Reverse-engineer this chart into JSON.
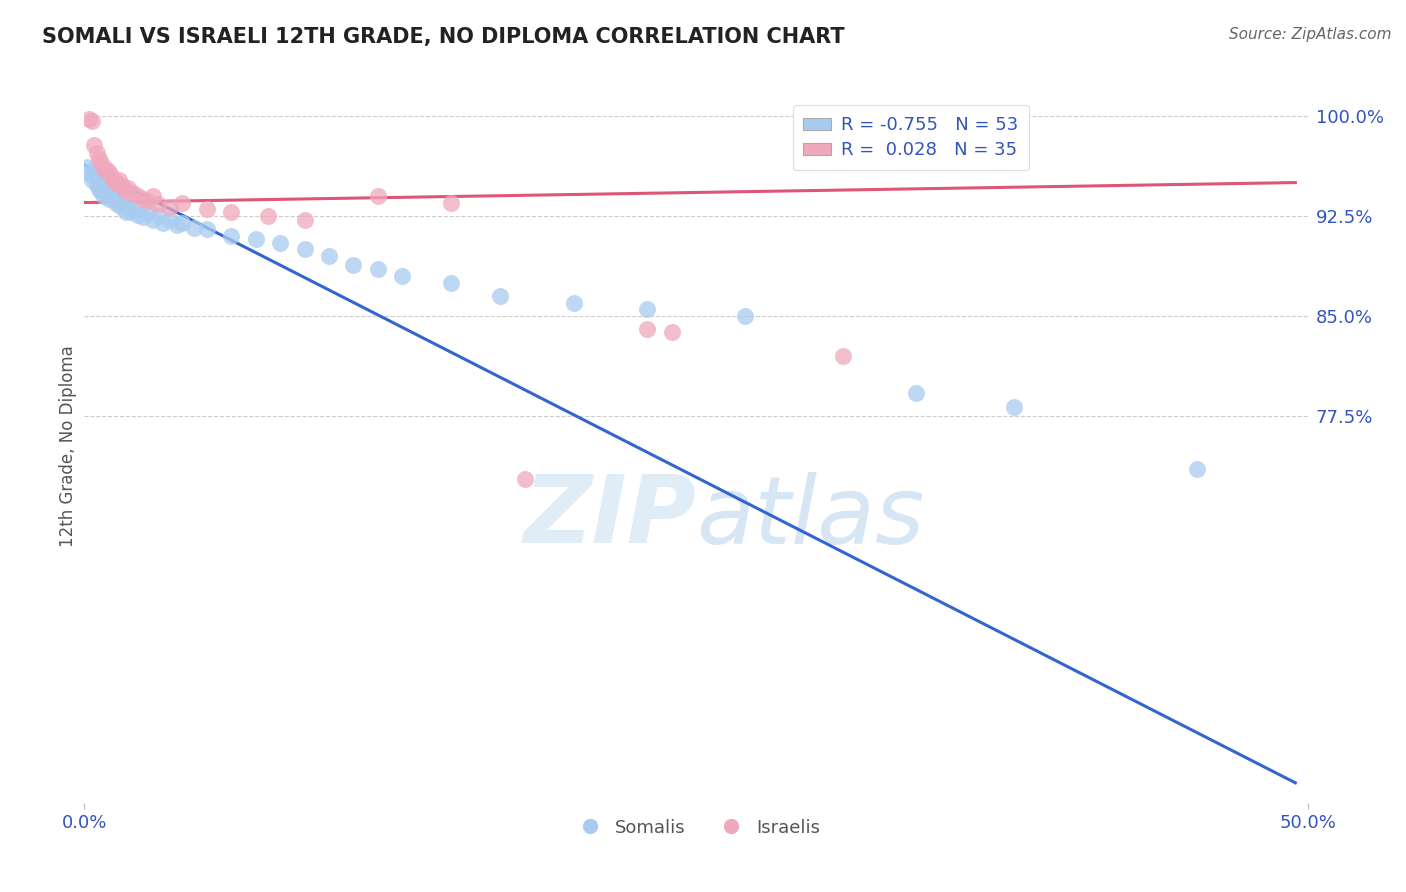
{
  "title": "SOMALI VS ISRAELI 12TH GRADE, NO DIPLOMA CORRELATION CHART",
  "source": "Source: ZipAtlas.com",
  "ylabel": "12th Grade, No Diploma",
  "xmin": 0.0,
  "xmax": 0.5,
  "ymin": 0.485,
  "ymax": 1.02,
  "background_color": "#ffffff",
  "grid_color": "#cccccc",
  "legend_r_somali": "-0.755",
  "legend_n_somali": "53",
  "legend_r_israeli": "0.028",
  "legend_n_israeli": "35",
  "somali_color": "#a8ccf0",
  "israeli_color": "#f0a8bc",
  "trendline_somali_color": "#3366cc",
  "trendline_israeli_color": "#dd5577",
  "somali_scatter": [
    [
      0.001,
      0.962
    ],
    [
      0.002,
      0.958
    ],
    [
      0.003,
      0.956
    ],
    [
      0.003,
      0.952
    ],
    [
      0.004,
      0.96
    ],
    [
      0.005,
      0.955
    ],
    [
      0.005,
      0.948
    ],
    [
      0.006,
      0.953
    ],
    [
      0.006,
      0.945
    ],
    [
      0.007,
      0.95
    ],
    [
      0.007,
      0.943
    ],
    [
      0.008,
      0.948
    ],
    [
      0.008,
      0.94
    ],
    [
      0.009,
      0.945
    ],
    [
      0.01,
      0.942
    ],
    [
      0.01,
      0.938
    ],
    [
      0.011,
      0.94
    ],
    [
      0.012,
      0.937
    ],
    [
      0.013,
      0.935
    ],
    [
      0.014,
      0.933
    ],
    [
      0.015,
      0.936
    ],
    [
      0.016,
      0.93
    ],
    [
      0.017,
      0.928
    ],
    [
      0.018,
      0.932
    ],
    [
      0.019,
      0.928
    ],
    [
      0.02,
      0.93
    ],
    [
      0.022,
      0.926
    ],
    [
      0.024,
      0.924
    ],
    [
      0.026,
      0.928
    ],
    [
      0.028,
      0.922
    ],
    [
      0.03,
      0.925
    ],
    [
      0.032,
      0.92
    ],
    [
      0.035,
      0.922
    ],
    [
      0.038,
      0.918
    ],
    [
      0.04,
      0.92
    ],
    [
      0.045,
      0.916
    ],
    [
      0.05,
      0.915
    ],
    [
      0.06,
      0.91
    ],
    [
      0.07,
      0.908
    ],
    [
      0.08,
      0.905
    ],
    [
      0.09,
      0.9
    ],
    [
      0.1,
      0.895
    ],
    [
      0.11,
      0.888
    ],
    [
      0.12,
      0.885
    ],
    [
      0.13,
      0.88
    ],
    [
      0.15,
      0.875
    ],
    [
      0.17,
      0.865
    ],
    [
      0.2,
      0.86
    ],
    [
      0.23,
      0.855
    ],
    [
      0.27,
      0.85
    ],
    [
      0.34,
      0.792
    ],
    [
      0.38,
      0.782
    ],
    [
      0.455,
      0.735
    ]
  ],
  "israeli_scatter": [
    [
      0.002,
      0.998
    ],
    [
      0.003,
      0.996
    ],
    [
      0.004,
      0.978
    ],
    [
      0.005,
      0.972
    ],
    [
      0.006,
      0.968
    ],
    [
      0.007,
      0.965
    ],
    [
      0.008,
      0.96
    ],
    [
      0.009,
      0.96
    ],
    [
      0.01,
      0.958
    ],
    [
      0.011,
      0.955
    ],
    [
      0.012,
      0.952
    ],
    [
      0.013,
      0.95
    ],
    [
      0.014,
      0.952
    ],
    [
      0.015,
      0.948
    ],
    [
      0.016,
      0.946
    ],
    [
      0.017,
      0.944
    ],
    [
      0.018,
      0.946
    ],
    [
      0.02,
      0.942
    ],
    [
      0.022,
      0.94
    ],
    [
      0.024,
      0.938
    ],
    [
      0.026,
      0.936
    ],
    [
      0.028,
      0.94
    ],
    [
      0.03,
      0.934
    ],
    [
      0.035,
      0.932
    ],
    [
      0.04,
      0.935
    ],
    [
      0.05,
      0.93
    ],
    [
      0.06,
      0.928
    ],
    [
      0.075,
      0.925
    ],
    [
      0.09,
      0.922
    ],
    [
      0.12,
      0.94
    ],
    [
      0.15,
      0.935
    ],
    [
      0.23,
      0.84
    ],
    [
      0.24,
      0.838
    ],
    [
      0.31,
      0.82
    ],
    [
      0.18,
      0.728
    ]
  ],
  "somali_trendline": [
    [
      0.0,
      0.963
    ],
    [
      0.495,
      0.5
    ]
  ],
  "israeli_trendline": [
    [
      0.0,
      0.935
    ],
    [
      0.495,
      0.95
    ]
  ]
}
